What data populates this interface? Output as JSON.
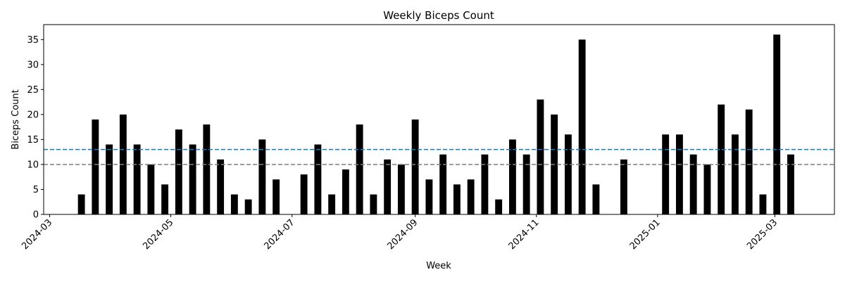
{
  "chart_data": {
    "type": "bar",
    "title": "Weekly Biceps Count",
    "xlabel": "Week",
    "ylabel": "Biceps Count",
    "ylim": [
      0,
      38
    ],
    "xlim": [
      "2024-02-27",
      "2025-03-31"
    ],
    "yticks": [
      0,
      5,
      10,
      15,
      20,
      25,
      30,
      35
    ],
    "xticks": [
      {
        "date": "2024-03-01",
        "label": "2024-03"
      },
      {
        "date": "2024-05-01",
        "label": "2024-05"
      },
      {
        "date": "2024-07-01",
        "label": "2024-07"
      },
      {
        "date": "2024-09-01",
        "label": "2024-09"
      },
      {
        "date": "2024-11-01",
        "label": "2024-11"
      },
      {
        "date": "2025-01-01",
        "label": "2025-01"
      },
      {
        "date": "2025-03-01",
        "label": "2025-03"
      }
    ],
    "grid": false,
    "bar_color": "#000000",
    "reference_lines": [
      {
        "y": 13,
        "color": "#1f77b4",
        "style": "dashed"
      },
      {
        "y": 10,
        "color": "#7f7f7f",
        "style": "dashed"
      }
    ],
    "x": [
      "2024-03-17",
      "2024-03-24",
      "2024-03-31",
      "2024-04-07",
      "2024-04-14",
      "2024-04-21",
      "2024-04-28",
      "2024-05-05",
      "2024-05-12",
      "2024-05-19",
      "2024-05-26",
      "2024-06-02",
      "2024-06-09",
      "2024-06-16",
      "2024-06-23",
      "2024-06-30",
      "2024-07-07",
      "2024-07-14",
      "2024-07-21",
      "2024-07-28",
      "2024-08-04",
      "2024-08-11",
      "2024-08-18",
      "2024-08-25",
      "2024-09-01",
      "2024-09-08",
      "2024-09-15",
      "2024-09-22",
      "2024-09-29",
      "2024-10-06",
      "2024-10-13",
      "2024-10-20",
      "2024-10-27",
      "2024-11-03",
      "2024-11-10",
      "2024-11-17",
      "2024-11-24",
      "2024-12-01",
      "2024-12-08",
      "2024-12-15",
      "2024-12-22",
      "2024-12-29",
      "2025-01-05",
      "2025-01-12",
      "2025-01-19",
      "2025-01-26",
      "2025-02-02",
      "2025-02-09",
      "2025-02-16",
      "2025-02-23",
      "2025-03-02",
      "2025-03-09"
    ],
    "values": [
      4,
      19,
      14,
      20,
      14,
      10,
      6,
      17,
      14,
      18,
      11,
      4,
      3,
      15,
      7,
      0,
      8,
      14,
      4,
      9,
      18,
      4,
      11,
      10,
      19,
      7,
      12,
      6,
      7,
      12,
      3,
      15,
      12,
      23,
      20,
      16,
      35,
      6,
      0,
      11,
      0,
      0,
      16,
      16,
      12,
      10,
      22,
      16,
      21,
      4,
      36,
      12
    ]
  }
}
